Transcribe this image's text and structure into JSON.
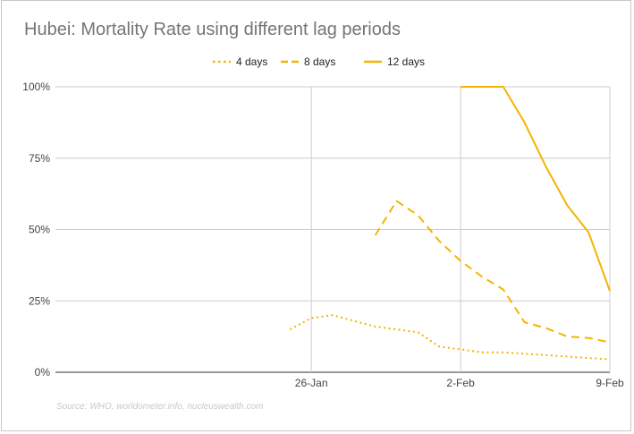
{
  "chart_data": {
    "type": "line",
    "title": "Hubei: Mortality Rate using different lag periods",
    "source": "Source: WHO, worldometer.info, nucleuswealth.com",
    "xlabel": "",
    "ylabel": "",
    "x_range": [
      -10,
      16
    ],
    "ylim": [
      0,
      100
    ],
    "y_ticks": [
      0,
      25,
      50,
      75,
      100
    ],
    "y_tick_labels": [
      "0%",
      "25%",
      "50%",
      "75%",
      "100%"
    ],
    "x_ticks": [
      2,
      9,
      16
    ],
    "x_tick_labels": [
      "26-Jan",
      "2-Feb",
      "9-Feb"
    ],
    "legend_position": "top",
    "color": "#f4b400",
    "series": [
      {
        "name": "4 days",
        "style": "dotted",
        "x": [
          1,
          2,
          3,
          4,
          5,
          6,
          7,
          8,
          9,
          10,
          11,
          12,
          13,
          14,
          15,
          16
        ],
        "values": [
          15,
          19,
          20,
          18,
          16,
          15,
          14,
          9,
          8,
          7,
          7,
          6.5,
          6,
          5.5,
          5,
          4.5
        ]
      },
      {
        "name": "8 days",
        "style": "dashed",
        "x": [
          5,
          6,
          7,
          8,
          9,
          10,
          11,
          12,
          13,
          14,
          15,
          16
        ],
        "values": [
          48,
          60,
          55,
          46,
          39,
          33.5,
          29,
          17.5,
          15.5,
          12.5,
          12,
          10.5
        ]
      },
      {
        "name": "12 days",
        "style": "solid",
        "x": [
          9,
          10,
          11,
          12,
          13,
          14,
          15,
          16
        ],
        "values": [
          100,
          100,
          100,
          87.5,
          72,
          58.5,
          49,
          28.5
        ]
      }
    ]
  }
}
